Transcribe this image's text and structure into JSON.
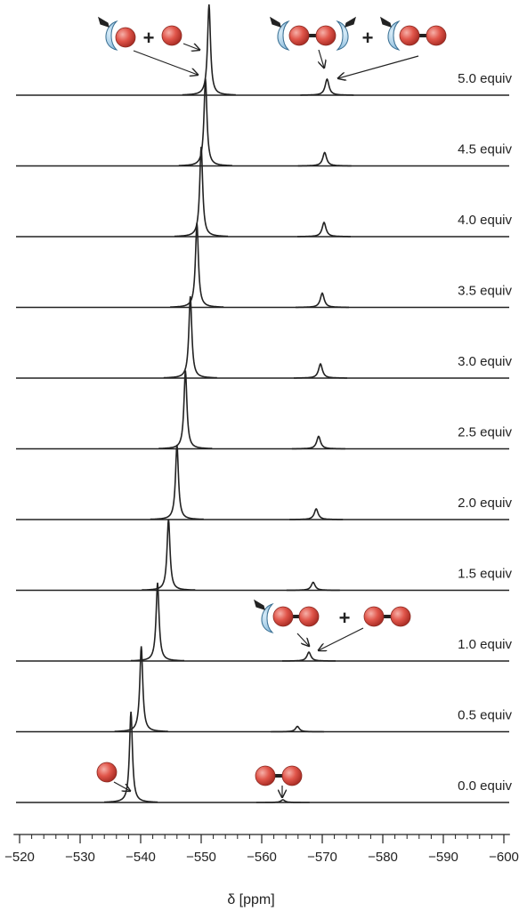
{
  "chart_data": {
    "type": "nmr-stack",
    "color": "#222",
    "xlabel": "δ [ppm]",
    "xlim": [
      -519,
      -601
    ],
    "xticks": [
      {
        "value": -520,
        "label": "−520"
      },
      {
        "value": -530,
        "label": "−530"
      },
      {
        "value": -540,
        "label": "−540"
      },
      {
        "value": -550,
        "label": "−550"
      },
      {
        "value": -560,
        "label": "−560"
      },
      {
        "value": -570,
        "label": "−570"
      },
      {
        "value": -580,
        "label": "−580"
      },
      {
        "value": -590,
        "label": "−590"
      },
      {
        "value": -600,
        "label": "−600"
      }
    ],
    "xminorticks": [
      -522,
      -524,
      -526,
      -528,
      -532,
      -534,
      -536,
      -538,
      -542,
      -544,
      -546,
      -548,
      -552,
      -554,
      -556,
      -558,
      -562,
      -564,
      -566,
      -568,
      -572,
      -574,
      -576,
      -578,
      -582,
      -584,
      -586,
      -588,
      -592,
      -594,
      -596,
      -598
    ],
    "annotations": [
      "+",
      "+",
      "+"
    ],
    "series": [
      {
        "name": "0.0 equiv",
        "peaks": [
          -538.4,
          -563.5
        ],
        "heights": [
          102,
          3
        ]
      },
      {
        "name": "0.5 equiv",
        "peaks": [
          -540.1,
          -565.9
        ],
        "heights": [
          96,
          6
        ]
      },
      {
        "name": "1.0 equiv",
        "peaks": [
          -542.8,
          -567.8
        ],
        "heights": [
          88,
          10
        ]
      },
      {
        "name": "1.5 equiv",
        "peaks": [
          -544.6,
          -568.5
        ],
        "heights": [
          80,
          9
        ]
      },
      {
        "name": "2.0 equiv",
        "peaks": [
          -546.0,
          -569.0
        ],
        "heights": [
          84,
          12
        ]
      },
      {
        "name": "2.5 equiv",
        "peaks": [
          -547.4,
          -569.4
        ],
        "heights": [
          88,
          14
        ]
      },
      {
        "name": "3.0 equiv",
        "peaks": [
          -548.2,
          -569.7
        ],
        "heights": [
          92,
          16
        ]
      },
      {
        "name": "3.5 equiv",
        "peaks": [
          -549.3,
          -570.0
        ],
        "heights": [
          95,
          16
        ]
      },
      {
        "name": "4.0 equiv",
        "peaks": [
          -550.0,
          -570.3
        ],
        "heights": [
          101,
          16
        ]
      },
      {
        "name": "4.5 equiv",
        "peaks": [
          -550.7,
          -570.4
        ],
        "heights": [
          98,
          15
        ]
      },
      {
        "name": "5.0 equiv",
        "peaks": [
          -551.3,
          -570.8
        ],
        "heights": [
          102,
          18
        ]
      }
    ]
  }
}
